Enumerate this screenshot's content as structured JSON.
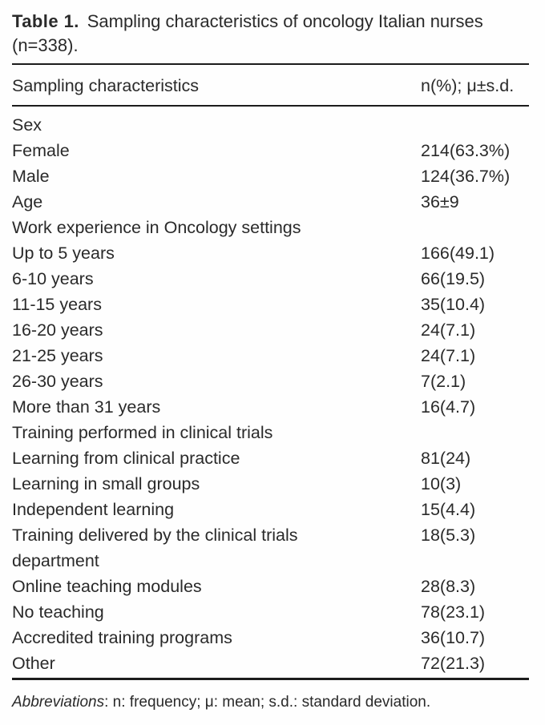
{
  "page": {
    "background": "#fefefe",
    "text_color": "#2a2a2a",
    "rule_color": "#1c1c1c"
  },
  "title": {
    "label_bold": "Table 1.",
    "label_rest": "Sampling characteristics of oncology Italian nurses (n=338)."
  },
  "table": {
    "header": {
      "characteristic": "Sampling characteristics",
      "value": "n(%); μ±s.d."
    },
    "rows": [
      {
        "label": "Sex",
        "value": ""
      },
      {
        "label": "Female",
        "value": "214(63.3%)"
      },
      {
        "label": "Male",
        "value": "124(36.7%)"
      },
      {
        "label": "Age",
        "value": "36±9"
      },
      {
        "label": "Work experience in Oncology settings",
        "value": ""
      },
      {
        "label": "Up to 5 years",
        "value": "166(49.1)"
      },
      {
        "label": "6-10 years",
        "value": "66(19.5)"
      },
      {
        "label": "11-15 years",
        "value": "35(10.4)"
      },
      {
        "label": "16-20 years",
        "value": "24(7.1)"
      },
      {
        "label": "21-25 years",
        "value": "24(7.1)"
      },
      {
        "label": "26-30 years",
        "value": "7(2.1)"
      },
      {
        "label": "More than 31 years",
        "value": "16(4.7)"
      },
      {
        "label": "Training performed in clinical trials",
        "value": ""
      },
      {
        "label": "Learning from clinical practice",
        "value": "81(24)"
      },
      {
        "label": "Learning in small groups",
        "value": "10(3)"
      },
      {
        "label": "Independent learning",
        "value": "15(4.4)"
      },
      {
        "label": "Training delivered by the clinical trials department",
        "value": "18(5.3)"
      },
      {
        "label": "Online teaching modules",
        "value": "28(8.3)"
      },
      {
        "label": "No teaching",
        "value": "78(23.1)"
      },
      {
        "label": "Accredited training programs",
        "value": "36(10.7)"
      },
      {
        "label": "Other",
        "value": "72(21.3)"
      }
    ]
  },
  "footnote": {
    "abbreviations_label": "Abbreviations",
    "text": ": n: frequency; μ: mean; s.d.: standard deviation."
  }
}
